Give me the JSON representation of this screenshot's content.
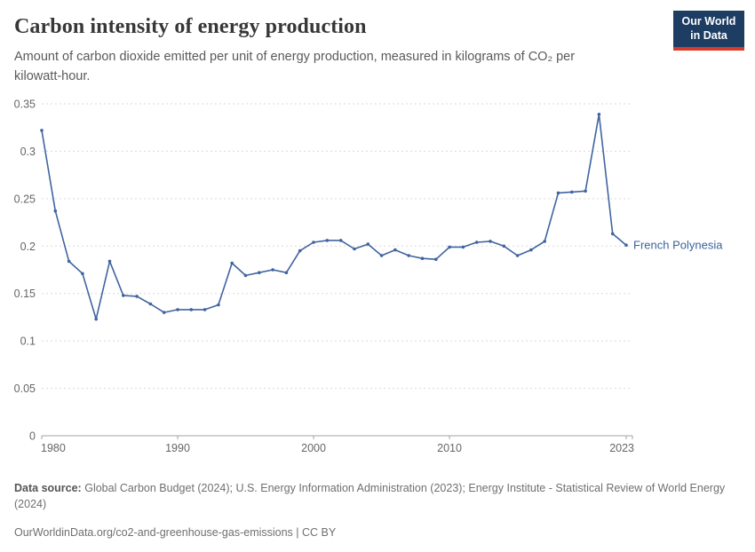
{
  "header": {
    "title": "Carbon intensity of energy production",
    "subtitle": "Amount of carbon dioxide emitted per unit of energy production, measured in kilograms of CO₂ per kilowatt-hour.",
    "logo": {
      "line1": "Our World",
      "line2": "in Data"
    }
  },
  "chart_data": {
    "type": "line",
    "title": "Carbon intensity of energy production",
    "entity_label": "French Polynesia",
    "series_name": "French Polynesia",
    "x": [
      1980,
      1981,
      1982,
      1983,
      1984,
      1985,
      1986,
      1987,
      1988,
      1989,
      1990,
      1991,
      1992,
      1993,
      1994,
      1995,
      1996,
      1997,
      1998,
      1999,
      2000,
      2001,
      2002,
      2003,
      2004,
      2005,
      2006,
      2007,
      2008,
      2009,
      2010,
      2011,
      2012,
      2013,
      2014,
      2015,
      2016,
      2017,
      2018,
      2019,
      2020,
      2021,
      2022,
      2023
    ],
    "values": [
      0.322,
      0.237,
      0.184,
      0.171,
      0.123,
      0.184,
      0.148,
      0.147,
      0.139,
      0.13,
      0.133,
      0.133,
      0.133,
      0.138,
      0.182,
      0.169,
      0.172,
      0.175,
      0.172,
      0.195,
      0.204,
      0.206,
      0.206,
      0.197,
      0.202,
      0.19,
      0.196,
      0.19,
      0.187,
      0.186,
      0.199,
      0.199,
      0.204,
      0.205,
      0.2,
      0.19,
      0.196,
      0.205,
      0.256,
      0.257,
      0.258,
      0.339,
      0.213,
      0.201
    ],
    "xlim": [
      1980,
      2023
    ],
    "ylim": [
      0,
      0.35
    ],
    "yticks": [
      0,
      0.05,
      0.1,
      0.15,
      0.2,
      0.25,
      0.3,
      0.35
    ],
    "ytick_labels": [
      "0",
      "0.05",
      "0.1",
      "0.15",
      "0.2",
      "0.25",
      "0.3",
      "0.35"
    ],
    "xticks": [
      1980,
      1990,
      2000,
      2010,
      2023
    ],
    "grid": "horizontal-dashed",
    "legend_position": "end-of-line",
    "line_color": "#4064a0",
    "grid_color": "#d9d9d9",
    "axis_color": "#a3a3a3",
    "tick_label_color": "#666666",
    "end_label_color": "#3c639c"
  },
  "footer": {
    "source_label": "Data source:",
    "source_text": "Global Carbon Budget (2024); U.S. Energy Information Administration (2023); Energy Institute - Statistical Review of World Energy (2024)",
    "link_text": "OurWorldinData.org/co2-and-greenhouse-gas-emissions | CC BY"
  }
}
